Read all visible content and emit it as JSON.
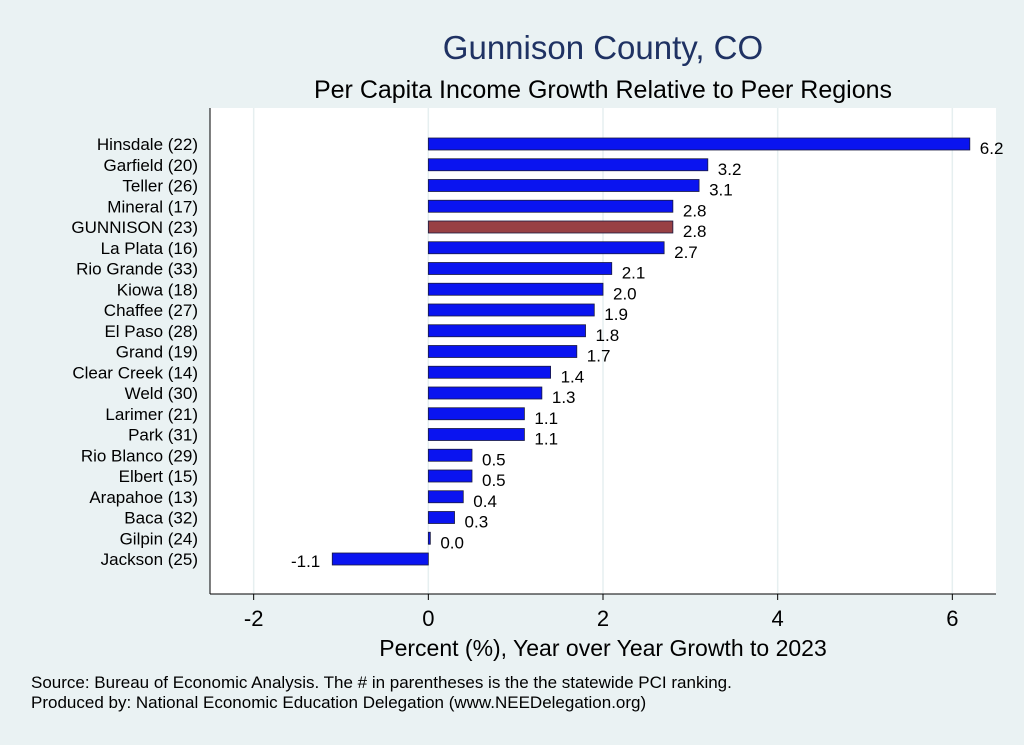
{
  "chart_data": {
    "type": "bar",
    "orientation": "horizontal",
    "title": "Gunnison County, CO",
    "subtitle": "Per Capita Income Growth Relative to Peer Regions",
    "xlabel": "Percent (%), Year over Year Growth to 2023",
    "ylabel": "",
    "xlim": [
      -2.5,
      6.5
    ],
    "xticks": [
      "-2",
      "0",
      "2",
      "4",
      "6"
    ],
    "grid": "vertical",
    "categories": [
      "Hinsdale (22)",
      "Garfield (20)",
      "Teller (26)",
      "Mineral (17)",
      "GUNNISON (23)",
      "La Plata (16)",
      "Rio Grande (33)",
      "Kiowa (18)",
      "Chaffee (27)",
      "El Paso (28)",
      "Grand (19)",
      "Clear Creek (14)",
      "Weld (30)",
      "Larimer (21)",
      "Park (31)",
      "Rio Blanco (29)",
      "Elbert (15)",
      "Arapahoe (13)",
      "Baca (32)",
      "Gilpin (24)",
      "Jackson (25)"
    ],
    "values": [
      6.2,
      3.2,
      3.1,
      2.8,
      2.8,
      2.7,
      2.1,
      2.0,
      1.9,
      1.8,
      1.7,
      1.4,
      1.3,
      1.1,
      1.1,
      0.5,
      0.5,
      0.4,
      0.3,
      0.0,
      -1.1
    ],
    "value_labels": [
      "6.2",
      "3.2",
      "3.1",
      "2.8",
      "2.8",
      "2.7",
      "2.1",
      "2.0",
      "1.9",
      "1.8",
      "1.7",
      "1.4",
      "1.3",
      "1.1",
      "1.1",
      "0.5",
      "0.5",
      "0.4",
      "0.3",
      "0.0",
      "-1.1"
    ],
    "highlight": "GUNNISON (23)",
    "colors": {
      "bar": "#0a14f0",
      "highlight": "#984044",
      "title": "#1f3263",
      "background": "#eaf2f3",
      "plot_area": "#ffffff",
      "grid": "#e6eff0"
    }
  },
  "source_note": "Source: Bureau of Economic Analysis. The # in parentheses is the the statewide PCI ranking.",
  "produced_by": "Produced by: National Economic Education Delegation (www.NEEDelegation.org)"
}
